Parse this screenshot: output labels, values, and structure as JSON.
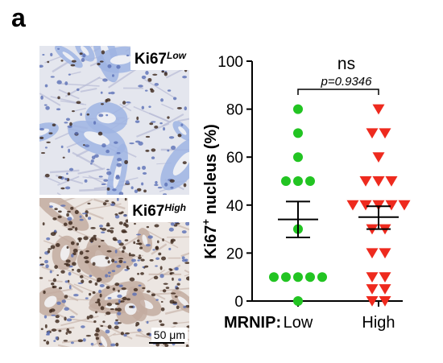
{
  "panel_letter": "a",
  "micrographs": [
    {
      "label": "Ki67",
      "label_superscript": "Low",
      "stain_level": "low"
    },
    {
      "label": "Ki67",
      "label_superscript": "High",
      "stain_level": "high",
      "scale_bar": "50 μm"
    }
  ],
  "colors": {
    "low": "#22c422",
    "high": "#ee2a1e",
    "axis": "#000000",
    "tissue_low": "#9fb4e3",
    "nuclei": "#3a2418"
  },
  "chart_data": {
    "type": "scatter",
    "ylabel_main": "Ki67",
    "ylabel_superscript": "+",
    "ylabel_rest": " nucleus (%)",
    "x_axis_title": "MRNIP:",
    "categories": [
      "Low",
      "High"
    ],
    "ylim": [
      0,
      100
    ],
    "yticks": [
      0,
      20,
      40,
      60,
      80,
      100
    ],
    "grid": false,
    "significance": {
      "label": "ns",
      "p_text": "p=0.9346"
    },
    "series": [
      {
        "category": "Low",
        "marker": "circle",
        "values": [
          80,
          70,
          60,
          50,
          50,
          50,
          30,
          10,
          10,
          10,
          10,
          10,
          0
        ],
        "mean": 34,
        "sem_low": 26.5,
        "sem_high": 41.5
      },
      {
        "category": "High",
        "marker": "triangle-down",
        "values": [
          80,
          70,
          70,
          60,
          50,
          50,
          50,
          40,
          40,
          40,
          40,
          40,
          30,
          30,
          20,
          20,
          10,
          10,
          5,
          5,
          0,
          0
        ],
        "mean": 35,
        "sem_low": 30,
        "sem_high": 39.5
      }
    ]
  }
}
